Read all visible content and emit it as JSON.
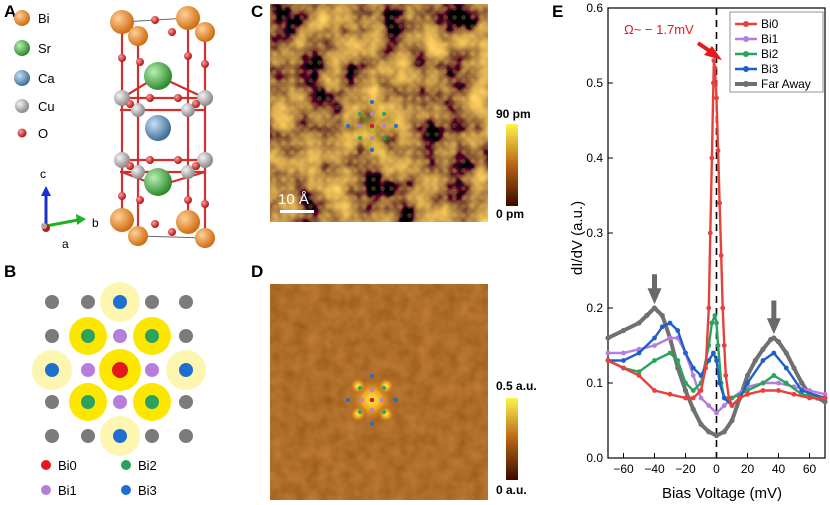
{
  "panels": {
    "A": {
      "letter": "A",
      "legend": [
        {
          "label": "Bi",
          "color": "#e8862a"
        },
        {
          "label": "Sr",
          "color": "#4caf50"
        },
        {
          "label": "Ca",
          "color": "#5b8db8"
        },
        {
          "label": "Cu",
          "color": "#a9a9a9"
        },
        {
          "label": "O",
          "color": "#d32f2f"
        }
      ],
      "axes": {
        "c": "c",
        "b": "b",
        "a": "a"
      }
    },
    "B": {
      "letter": "B",
      "legend": [
        {
          "label": "Bi0",
          "color": "#e31a1c"
        },
        {
          "label": "Bi2",
          "color": "#2ca25f"
        },
        {
          "label": "Bi1",
          "color": "#b57edc"
        },
        {
          "label": "Bi3",
          "color": "#1f6fd1"
        }
      ]
    },
    "C": {
      "letter": "C",
      "scalebar": "10 Å",
      "colorbar_max": "90 pm",
      "colorbar_min": "0 pm"
    },
    "D": {
      "letter": "D",
      "colorbar_max": "0.5 a.u.",
      "colorbar_min": "0 a.u."
    },
    "E": {
      "letter": "E",
      "annotation": "Ω~ − 1.7mV"
    }
  },
  "colors": {
    "Bi0": "#e8403a",
    "Bi1": "#b57edc",
    "Bi2": "#2ca25f",
    "Bi3": "#1f5fc8",
    "FarAway": "#707070",
    "arrow": "#696969"
  },
  "chart_data": {
    "type": "line",
    "title": "",
    "xlabel": "Bias Voltage (mV)",
    "ylabel": "dI/dV (a.u.)",
    "xlim": [
      -70,
      70
    ],
    "ylim": [
      0.0,
      0.6
    ],
    "xticks": [
      -60,
      -40,
      -20,
      0,
      20,
      40,
      60
    ],
    "yticks": [
      0.0,
      0.1,
      0.2,
      0.3,
      0.4,
      0.5,
      0.6
    ],
    "legend_position": "top-right",
    "vline_x": 0,
    "series": [
      {
        "name": "Bi0",
        "color": "#e8403a",
        "x": [
          -70,
          -60,
          -50,
          -40,
          -30,
          -20,
          -15,
          -10,
          -7,
          -5,
          -4,
          -3,
          -2,
          -1.7,
          -1,
          0,
          1,
          2,
          3,
          4,
          5,
          6,
          8,
          10,
          15,
          20,
          30,
          40,
          50,
          60,
          70
        ],
        "y": [
          0.13,
          0.12,
          0.11,
          0.09,
          0.085,
          0.08,
          0.08,
          0.09,
          0.12,
          0.2,
          0.3,
          0.4,
          0.5,
          0.53,
          0.52,
          0.48,
          0.41,
          0.34,
          0.27,
          0.2,
          0.15,
          0.11,
          0.08,
          0.07,
          0.08,
          0.085,
          0.09,
          0.09,
          0.085,
          0.08,
          0.08
        ]
      },
      {
        "name": "Bi1",
        "color": "#b57edc",
        "x": [
          -70,
          -60,
          -50,
          -40,
          -30,
          -25,
          -20,
          -15,
          -10,
          -5,
          0,
          5,
          10,
          20,
          30,
          40,
          50,
          60,
          70
        ],
        "y": [
          0.14,
          0.14,
          0.145,
          0.15,
          0.16,
          0.16,
          0.14,
          0.11,
          0.08,
          0.07,
          0.06,
          0.07,
          0.08,
          0.095,
          0.1,
          0.1,
          0.095,
          0.09,
          0.085
        ]
      },
      {
        "name": "Bi2",
        "color": "#2ca25f",
        "x": [
          -70,
          -60,
          -50,
          -40,
          -30,
          -25,
          -20,
          -15,
          -10,
          -5,
          -3,
          -1,
          0,
          1,
          3,
          5,
          10,
          20,
          30,
          37,
          45,
          55,
          70
        ],
        "y": [
          0.13,
          0.12,
          0.115,
          0.13,
          0.14,
          0.13,
          0.1,
          0.09,
          0.1,
          0.15,
          0.18,
          0.19,
          0.18,
          0.15,
          0.1,
          0.08,
          0.08,
          0.09,
          0.1,
          0.11,
          0.1,
          0.085,
          0.08
        ]
      },
      {
        "name": "Bi3",
        "color": "#1f5fc8",
        "x": [
          -70,
          -60,
          -50,
          -40,
          -35,
          -30,
          -25,
          -20,
          -15,
          -10,
          -5,
          -2,
          0,
          2,
          5,
          10,
          15,
          20,
          30,
          37,
          45,
          55,
          70
        ],
        "y": [
          0.13,
          0.13,
          0.14,
          0.16,
          0.175,
          0.18,
          0.17,
          0.14,
          0.12,
          0.11,
          0.13,
          0.14,
          0.13,
          0.1,
          0.08,
          0.07,
          0.08,
          0.1,
          0.13,
          0.14,
          0.12,
          0.09,
          0.08
        ]
      },
      {
        "name": "Far Away",
        "color": "#707070",
        "x": [
          -70,
          -60,
          -50,
          -45,
          -40,
          -35,
          -30,
          -25,
          -20,
          -15,
          -10,
          -5,
          0,
          5,
          10,
          15,
          20,
          25,
          30,
          35,
          37,
          40,
          45,
          50,
          55,
          60,
          65,
          70
        ],
        "y": [
          0.16,
          0.17,
          0.18,
          0.19,
          0.2,
          0.19,
          0.16,
          0.12,
          0.09,
          0.065,
          0.045,
          0.035,
          0.03,
          0.035,
          0.05,
          0.08,
          0.11,
          0.13,
          0.145,
          0.158,
          0.16,
          0.155,
          0.14,
          0.12,
          0.1,
          0.085,
          0.08,
          0.075
        ]
      }
    ],
    "arrows": [
      {
        "x": -40,
        "y_from": 0.245,
        "y_to": 0.205
      },
      {
        "x": 37,
        "y_from": 0.21,
        "y_to": 0.165
      }
    ]
  }
}
